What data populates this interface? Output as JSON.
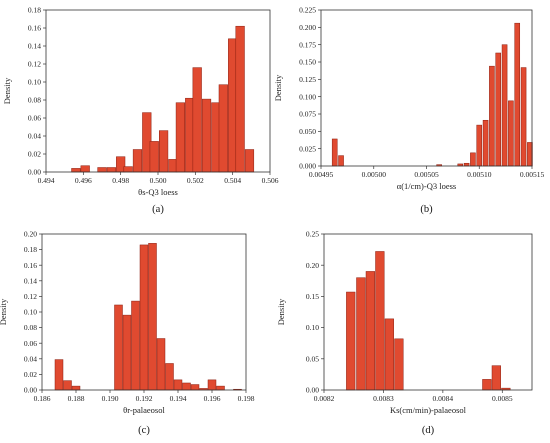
{
  "style": {
    "bar_color": "#e04a30",
    "bar_edge": "#8a1e10",
    "axis_color": "#333333"
  },
  "chart_data": [
    {
      "type": "bar",
      "caption": "(a)",
      "xlabel": "θs-Q3 loess",
      "ylabel": "Density",
      "xlim": [
        0.494,
        0.506
      ],
      "ylim": [
        0,
        0.18
      ],
      "xticks": [
        "0.494",
        "0.496",
        "0.498",
        "0.500",
        "0.502",
        "0.504",
        "0.506"
      ],
      "yticks": [
        "0.00",
        "0.02",
        "0.04",
        "0.06",
        "0.08",
        "0.10",
        "0.12",
        "0.14",
        "0.16",
        "0.18"
      ],
      "bin_width": 0.000465,
      "bins": [
        [
          0.4956,
          0.004
        ],
        [
          0.4961,
          0.007
        ],
        [
          0.497,
          0.005
        ],
        [
          0.4975,
          0.005
        ],
        [
          0.498,
          0.017
        ],
        [
          0.4984,
          0.006
        ],
        [
          0.4989,
          0.025
        ],
        [
          0.4994,
          0.066
        ],
        [
          0.4998,
          0.034
        ],
        [
          0.5003,
          0.046
        ],
        [
          0.5008,
          0.014
        ],
        [
          0.5012,
          0.077
        ],
        [
          0.5017,
          0.082
        ],
        [
          0.5021,
          0.116
        ],
        [
          0.5026,
          0.081
        ],
        [
          0.5031,
          0.077
        ],
        [
          0.5035,
          0.097
        ],
        [
          0.504,
          0.148
        ],
        [
          0.5044,
          0.162
        ],
        [
          0.5049,
          0.025
        ]
      ]
    },
    {
      "type": "bar",
      "caption": "(b)",
      "xlabel": "α(1/cm)-Q3 loess",
      "ylabel": "Density",
      "xlim": [
        0.00495,
        0.00515
      ],
      "ylim": [
        0,
        0.225
      ],
      "xticks": [
        "0.00495",
        "0.00500",
        "0.00505",
        "0.00510",
        "0.00515"
      ],
      "yticks": [
        "0.000",
        "0.025",
        "0.050",
        "0.075",
        "0.100",
        "0.125",
        "0.150",
        "0.175",
        "0.200",
        "0.225"
      ],
      "bin_width": 4.8e-06,
      "bins": [
        [
          0.004963,
          0.039
        ],
        [
          0.004969,
          0.015
        ],
        [
          0.005062,
          0.002
        ],
        [
          0.005082,
          0.003
        ],
        [
          0.005088,
          0.004
        ],
        [
          0.005094,
          0.019
        ],
        [
          0.0051,
          0.059
        ],
        [
          0.005106,
          0.066
        ],
        [
          0.005112,
          0.144
        ],
        [
          0.005118,
          0.163
        ],
        [
          0.005124,
          0.175
        ],
        [
          0.00513,
          0.094
        ],
        [
          0.005136,
          0.206
        ],
        [
          0.005142,
          0.142
        ],
        [
          0.005148,
          0.034
        ]
      ]
    },
    {
      "type": "bar",
      "caption": "(c)",
      "xlabel": "θr-palaeosol",
      "ylabel": "Density",
      "xlim": [
        0.186,
        0.198
      ],
      "ylim": [
        0,
        0.2
      ],
      "xticks": [
        "0.186",
        "0.188",
        "0.190",
        "0.192",
        "0.194",
        "0.196",
        "0.198"
      ],
      "yticks": [
        "0.00",
        "0.02",
        "0.04",
        "0.06",
        "0.08",
        "0.10",
        "0.12",
        "0.14",
        "0.16",
        "0.18",
        "0.20"
      ],
      "bin_width": 0.00047,
      "bins": [
        [
          0.187,
          0.039
        ],
        [
          0.1875,
          0.012
        ],
        [
          0.188,
          0.005
        ],
        [
          0.1905,
          0.109
        ],
        [
          0.191,
          0.096
        ],
        [
          0.1915,
          0.114
        ],
        [
          0.192,
          0.186
        ],
        [
          0.1925,
          0.188
        ],
        [
          0.193,
          0.066
        ],
        [
          0.1935,
          0.034
        ],
        [
          0.194,
          0.013
        ],
        [
          0.1945,
          0.009
        ],
        [
          0.195,
          0.007
        ],
        [
          0.1955,
          0.002
        ],
        [
          0.196,
          0.013
        ],
        [
          0.1965,
          0.005
        ],
        [
          0.1975,
          0.001
        ]
      ]
    },
    {
      "type": "bar",
      "caption": "(d)",
      "xlabel": "Ks(cm/min)-palaeosol",
      "ylabel": "Density",
      "xlim": [
        0.0082,
        0.00855
      ],
      "ylim": [
        0,
        0.25
      ],
      "xticks": [
        "0.0082",
        "0.0083",
        "0.0084",
        "0.0085"
      ],
      "yticks": [
        "0.00",
        "0.05",
        "0.10",
        "0.15",
        "0.20",
        "0.25"
      ],
      "bin_width": 1.46e-05,
      "bins": [
        [
          0.008245,
          0.157
        ],
        [
          0.008262,
          0.18
        ],
        [
          0.008278,
          0.19
        ],
        [
          0.008294,
          0.222
        ],
        [
          0.00831,
          0.114
        ],
        [
          0.008326,
          0.082
        ],
        [
          0.008474,
          0.017
        ],
        [
          0.00849,
          0.039
        ],
        [
          0.008506,
          0.003
        ]
      ]
    }
  ]
}
